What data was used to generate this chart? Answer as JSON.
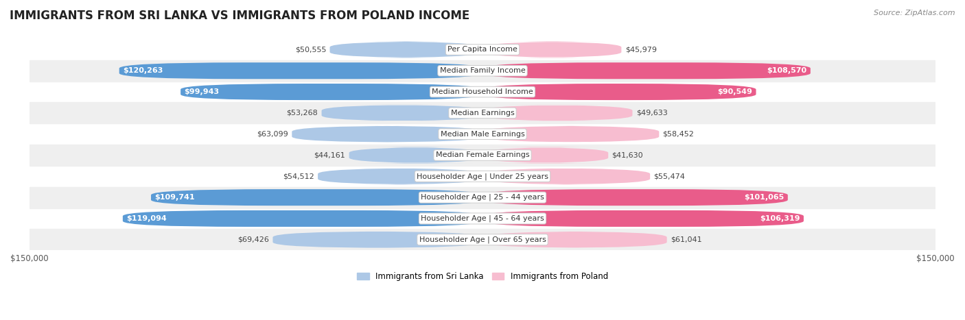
{
  "title": "IMMIGRANTS FROM SRI LANKA VS IMMIGRANTS FROM POLAND INCOME",
  "source": "Source: ZipAtlas.com",
  "categories": [
    "Per Capita Income",
    "Median Family Income",
    "Median Household Income",
    "Median Earnings",
    "Median Male Earnings",
    "Median Female Earnings",
    "Householder Age | Under 25 years",
    "Householder Age | 25 - 44 years",
    "Householder Age | 45 - 64 years",
    "Householder Age | Over 65 years"
  ],
  "sri_lanka_values": [
    50555,
    120263,
    99943,
    53268,
    63099,
    44161,
    54512,
    109741,
    119094,
    69426
  ],
  "poland_values": [
    45979,
    108570,
    90549,
    49633,
    58452,
    41630,
    55474,
    101065,
    106319,
    61041
  ],
  "sri_lanka_labels": [
    "$50,555",
    "$120,263",
    "$99,943",
    "$53,268",
    "$63,099",
    "$44,161",
    "$54,512",
    "$109,741",
    "$119,094",
    "$69,426"
  ],
  "poland_labels": [
    "$45,979",
    "$108,570",
    "$90,549",
    "$49,633",
    "$58,452",
    "$41,630",
    "$55,474",
    "$101,065",
    "$106,319",
    "$61,041"
  ],
  "sri_lanka_color_light": "#adc8e6",
  "sri_lanka_color_dark": "#5b9bd5",
  "poland_color_light": "#f7bdd0",
  "poland_color_dark": "#e95c8a",
  "max_value": 150000,
  "bar_height": 0.78,
  "background_color": "#ffffff",
  "row_bg_alt": "#efefef",
  "legend_sri_lanka": "Immigrants from Sri Lanka",
  "legend_poland": "Immigrants from Poland",
  "title_fontsize": 12,
  "label_fontsize": 8,
  "category_fontsize": 8,
  "axis_fontsize": 8.5,
  "source_fontsize": 8,
  "inside_threshold": 70000
}
